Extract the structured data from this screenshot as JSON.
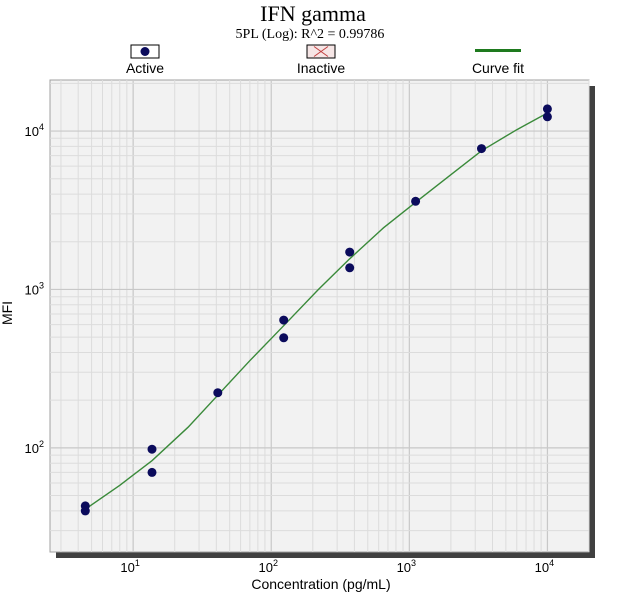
{
  "colors": {
    "background": "#ffffff",
    "plot_background": "#f2f2f2",
    "grid_major": "#c8c8c8",
    "grid_minor": "#dcdcdc",
    "shadow": "#404040",
    "point_fill": "#0b0b5c",
    "curve": "#3a8a3a",
    "legend_curve": "#1e7a1e",
    "inactive_fill": "#f6e6e6",
    "inactive_mark": "#c04040",
    "text": "#000000"
  },
  "chart_data": {
    "type": "scatter",
    "title": "IFN gamma",
    "subtitle": "5PL (Log): R^2 = 0.99786",
    "xlabel": "Concentration (pg/mL)",
    "ylabel": "MFI",
    "xscale": "log",
    "yscale": "log",
    "xlim": [
      2.5,
      20000
    ],
    "ylim": [
      22,
      21000
    ],
    "grid": true,
    "legend_placement": "top",
    "legend": [
      "Active",
      "Inactive",
      "Curve fit"
    ],
    "x_ticks": [
      {
        "value": 10,
        "label": "10",
        "exp": "1"
      },
      {
        "value": 100,
        "label": "10",
        "exp": "2"
      },
      {
        "value": 1000,
        "label": "10",
        "exp": "3"
      },
      {
        "value": 10000,
        "label": "10",
        "exp": "4"
      }
    ],
    "y_ticks": [
      {
        "value": 100,
        "label": "10",
        "exp": "2"
      },
      {
        "value": 1000,
        "label": "10",
        "exp": "3"
      },
      {
        "value": 10000,
        "label": "10",
        "exp": "4"
      }
    ],
    "series": [
      {
        "name": "Active",
        "points": [
          {
            "x": 4.5,
            "y": 43
          },
          {
            "x": 4.5,
            "y": 40
          },
          {
            "x": 13.7,
            "y": 98
          },
          {
            "x": 13.7,
            "y": 70
          },
          {
            "x": 41,
            "y": 223
          },
          {
            "x": 123,
            "y": 640
          },
          {
            "x": 123,
            "y": 495
          },
          {
            "x": 370,
            "y": 1720
          },
          {
            "x": 370,
            "y": 1370
          },
          {
            "x": 1110,
            "y": 3600
          },
          {
            "x": 3330,
            "y": 7750
          },
          {
            "x": 10000,
            "y": 13800
          },
          {
            "x": 10000,
            "y": 12300
          }
        ]
      },
      {
        "name": "Curve fit",
        "points": [
          {
            "x": 4.5,
            "y": 41
          },
          {
            "x": 8,
            "y": 58
          },
          {
            "x": 13.7,
            "y": 83
          },
          {
            "x": 25,
            "y": 135
          },
          {
            "x": 41,
            "y": 215
          },
          {
            "x": 70,
            "y": 355
          },
          {
            "x": 123,
            "y": 590
          },
          {
            "x": 220,
            "y": 1000
          },
          {
            "x": 370,
            "y": 1560
          },
          {
            "x": 650,
            "y": 2450
          },
          {
            "x": 1110,
            "y": 3550
          },
          {
            "x": 2000,
            "y": 5300
          },
          {
            "x": 3330,
            "y": 7500
          },
          {
            "x": 6000,
            "y": 10200
          },
          {
            "x": 10000,
            "y": 13000
          }
        ]
      }
    ]
  }
}
